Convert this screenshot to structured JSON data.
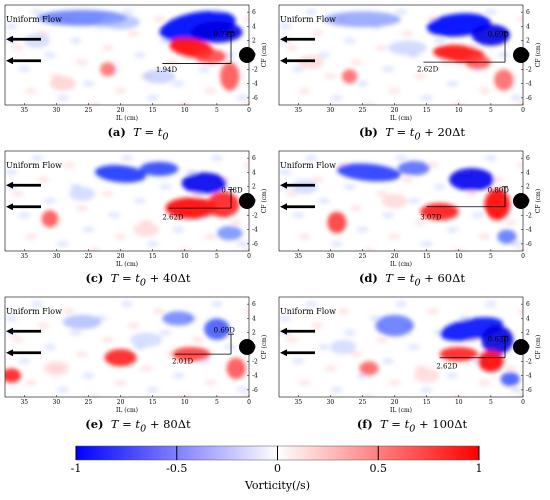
{
  "figure": {
    "panels": [
      {
        "id": "a",
        "letter": "(a)",
        "caption_math": "T = t",
        "caption_sub": "0",
        "caption_rest": "",
        "flow_label": "Uniform Flow",
        "annotations": [
          {
            "text": "1.94D"
          },
          {
            "text": "0.74D"
          }
        ]
      },
      {
        "id": "b",
        "letter": "(b)",
        "caption_math": "T = t",
        "caption_sub": "0",
        "caption_rest": " + 20Δt",
        "flow_label": "Uniform Flow",
        "annotations": [
          {
            "text": "2.62D"
          },
          {
            "text": "0.69D"
          }
        ]
      },
      {
        "id": "c",
        "letter": "(c)",
        "caption_math": "T = t",
        "caption_sub": "0",
        "caption_rest": " + 40Δt",
        "flow_label": "Uniform Flow",
        "annotations": [
          {
            "text": "2.62D"
          },
          {
            "text": "0.78D"
          }
        ]
      },
      {
        "id": "d",
        "letter": "(d)",
        "caption_math": "T = t",
        "caption_sub": "0",
        "caption_rest": " + 60Δt",
        "flow_label": "Uniform Flow",
        "annotations": [
          {
            "text": "3.07D"
          },
          {
            "text": "0.80D"
          }
        ]
      },
      {
        "id": "e",
        "letter": "(e)",
        "caption_math": "T = t",
        "caption_sub": "0",
        "caption_rest": " + 80Δt",
        "flow_label": "Uniform Flow",
        "annotations": [
          {
            "text": "2.01D"
          },
          {
            "text": "0.69D"
          }
        ]
      },
      {
        "id": "f",
        "letter": "(f)",
        "caption_math": "T = t",
        "caption_sub": "0",
        "caption_rest": " + 100Δt",
        "flow_label": "Uniform Flow",
        "annotations": [
          {
            "text": "2.62D"
          },
          {
            "text": "0.63D"
          }
        ]
      }
    ],
    "x_axis": {
      "label": "IL (cm)",
      "ticks": [
        "35",
        "30",
        "25",
        "20",
        "15",
        "10",
        "5",
        "0"
      ],
      "range": [
        38,
        0
      ]
    },
    "y_axis": {
      "label": "CF (cm)",
      "ticks": [
        "6",
        "4",
        "2",
        "0",
        "-2",
        "-4",
        "-6"
      ],
      "range": [
        -7,
        7
      ]
    },
    "colorbar": {
      "label": "Vorticity(/s)",
      "ticks": [
        "-1",
        "-0.5",
        "0",
        "0.5",
        "1"
      ],
      "range": [
        -1,
        1
      ],
      "colors": {
        "negative": "#0000ff",
        "zero": "#ffffff",
        "positive": "#ff0000"
      }
    },
    "cylinder_color": "#000000"
  }
}
